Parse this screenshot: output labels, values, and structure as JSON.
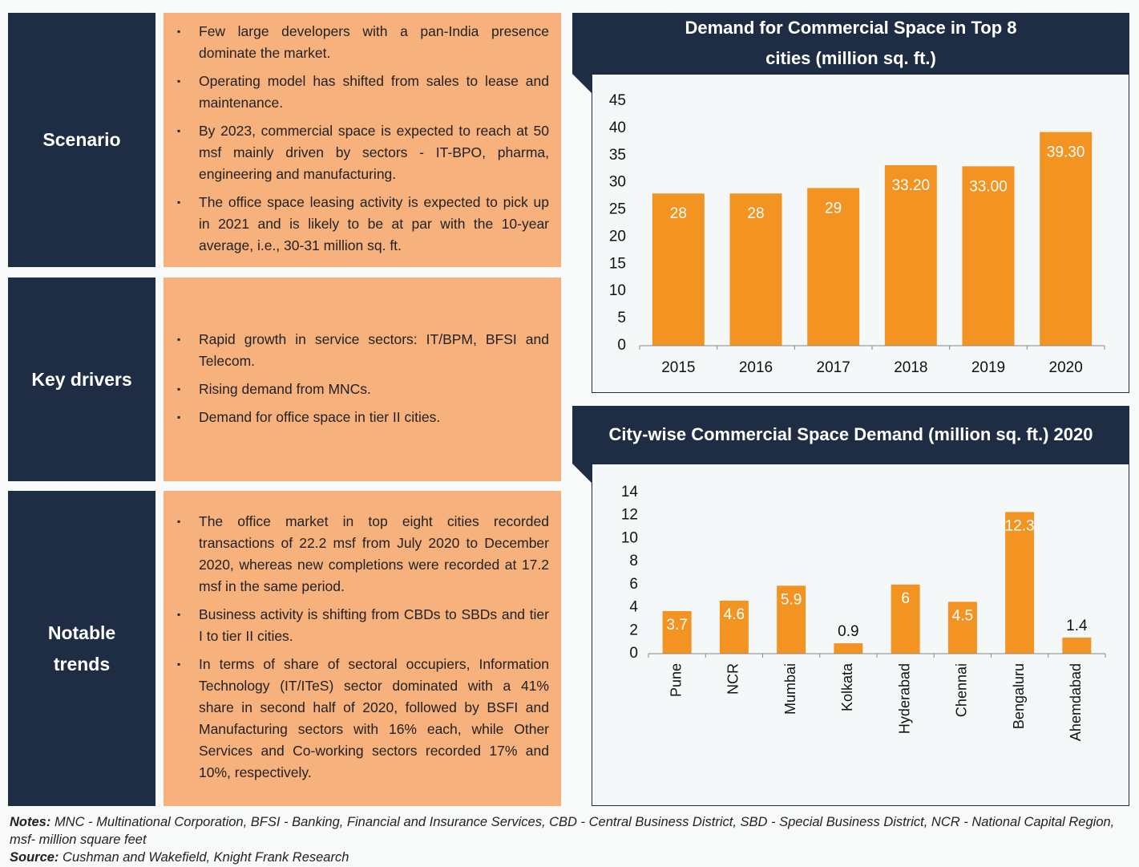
{
  "sections": [
    {
      "label": "Scenario",
      "bullets": [
        "Few large developers with a pan-India presence dominate the market.",
        "Operating model has shifted from sales to lease and maintenance.",
        "By 2023, commercial space is expected to reach at 50 msf mainly driven by sectors - IT-BPO, pharma, engineering and manufacturing.",
        "The office space leasing activity is expected to pick up in 2021 and is likely to be at par with the 10-year average, i.e., 30-31 million sq. ft."
      ]
    },
    {
      "label": "Key drivers",
      "bullets": [
        "Rapid growth in service sectors: IT/BPM, BFSI and Telecom.",
        "Rising demand from MNCs.",
        "Demand for office space in tier II cities."
      ]
    },
    {
      "label": "Notable trends",
      "bullets": [
        "The office market in top eight cities recorded transactions of 22.2 msf from July 2020 to December 2020, whereas new completions were recorded at 17.2 msf in the same period.",
        "Business activity is shifting from CBDs to SBDs and tier I to tier II cities.",
        "In terms of share of sectoral occupiers, Information Technology (IT/ITeS) sector dominated with a 41% share in second half of 2020, followed by BSFI and Manufacturing sectors with 16% each, while Other Services and Co-working sectors recorded 17% and 10%, respectively."
      ]
    }
  ],
  "chart_data": [
    {
      "type": "bar",
      "title": "Demand for Commercial Space in Top 8 cities (million sq. ft.)",
      "categories": [
        "2015",
        "2016",
        "2017",
        "2018",
        "2019",
        "2020"
      ],
      "values": [
        28,
        28,
        29,
        33.2,
        33.0,
        39.3
      ],
      "value_labels": [
        "28",
        "28",
        "29",
        "33.20",
        "33.00",
        "39.30"
      ],
      "color": "#f39322",
      "ylim": [
        0,
        45
      ],
      "yticks": [
        0,
        5,
        10,
        15,
        20,
        25,
        30,
        35,
        40,
        45
      ]
    },
    {
      "type": "bar",
      "title": "City-wise Commercial Space Demand (million sq. ft.) 2020",
      "categories": [
        "Pune",
        "NCR",
        "Mumbai",
        "Kolkata",
        "Hyderabad",
        "Chennai",
        "Bengaluru",
        "Ahemdabad"
      ],
      "values": [
        3.7,
        4.6,
        5.9,
        0.9,
        6,
        4.5,
        12.3,
        1.4
      ],
      "color": "#f39322",
      "ylim": [
        0,
        14
      ],
      "yticks": [
        0,
        2,
        4,
        6,
        8,
        10,
        12,
        14
      ]
    }
  ],
  "notes": {
    "label": "Notes:",
    "text": "MNC - Multinational Corporation, BFSI - Banking, Financial and Insurance Services, CBD - Central Business District, SBD - Special Business District, NCR - National Capital Region, msf- million square feet"
  },
  "source": {
    "label": "Source:",
    "text": "Cushman and Wakefield, Knight Frank Research"
  }
}
